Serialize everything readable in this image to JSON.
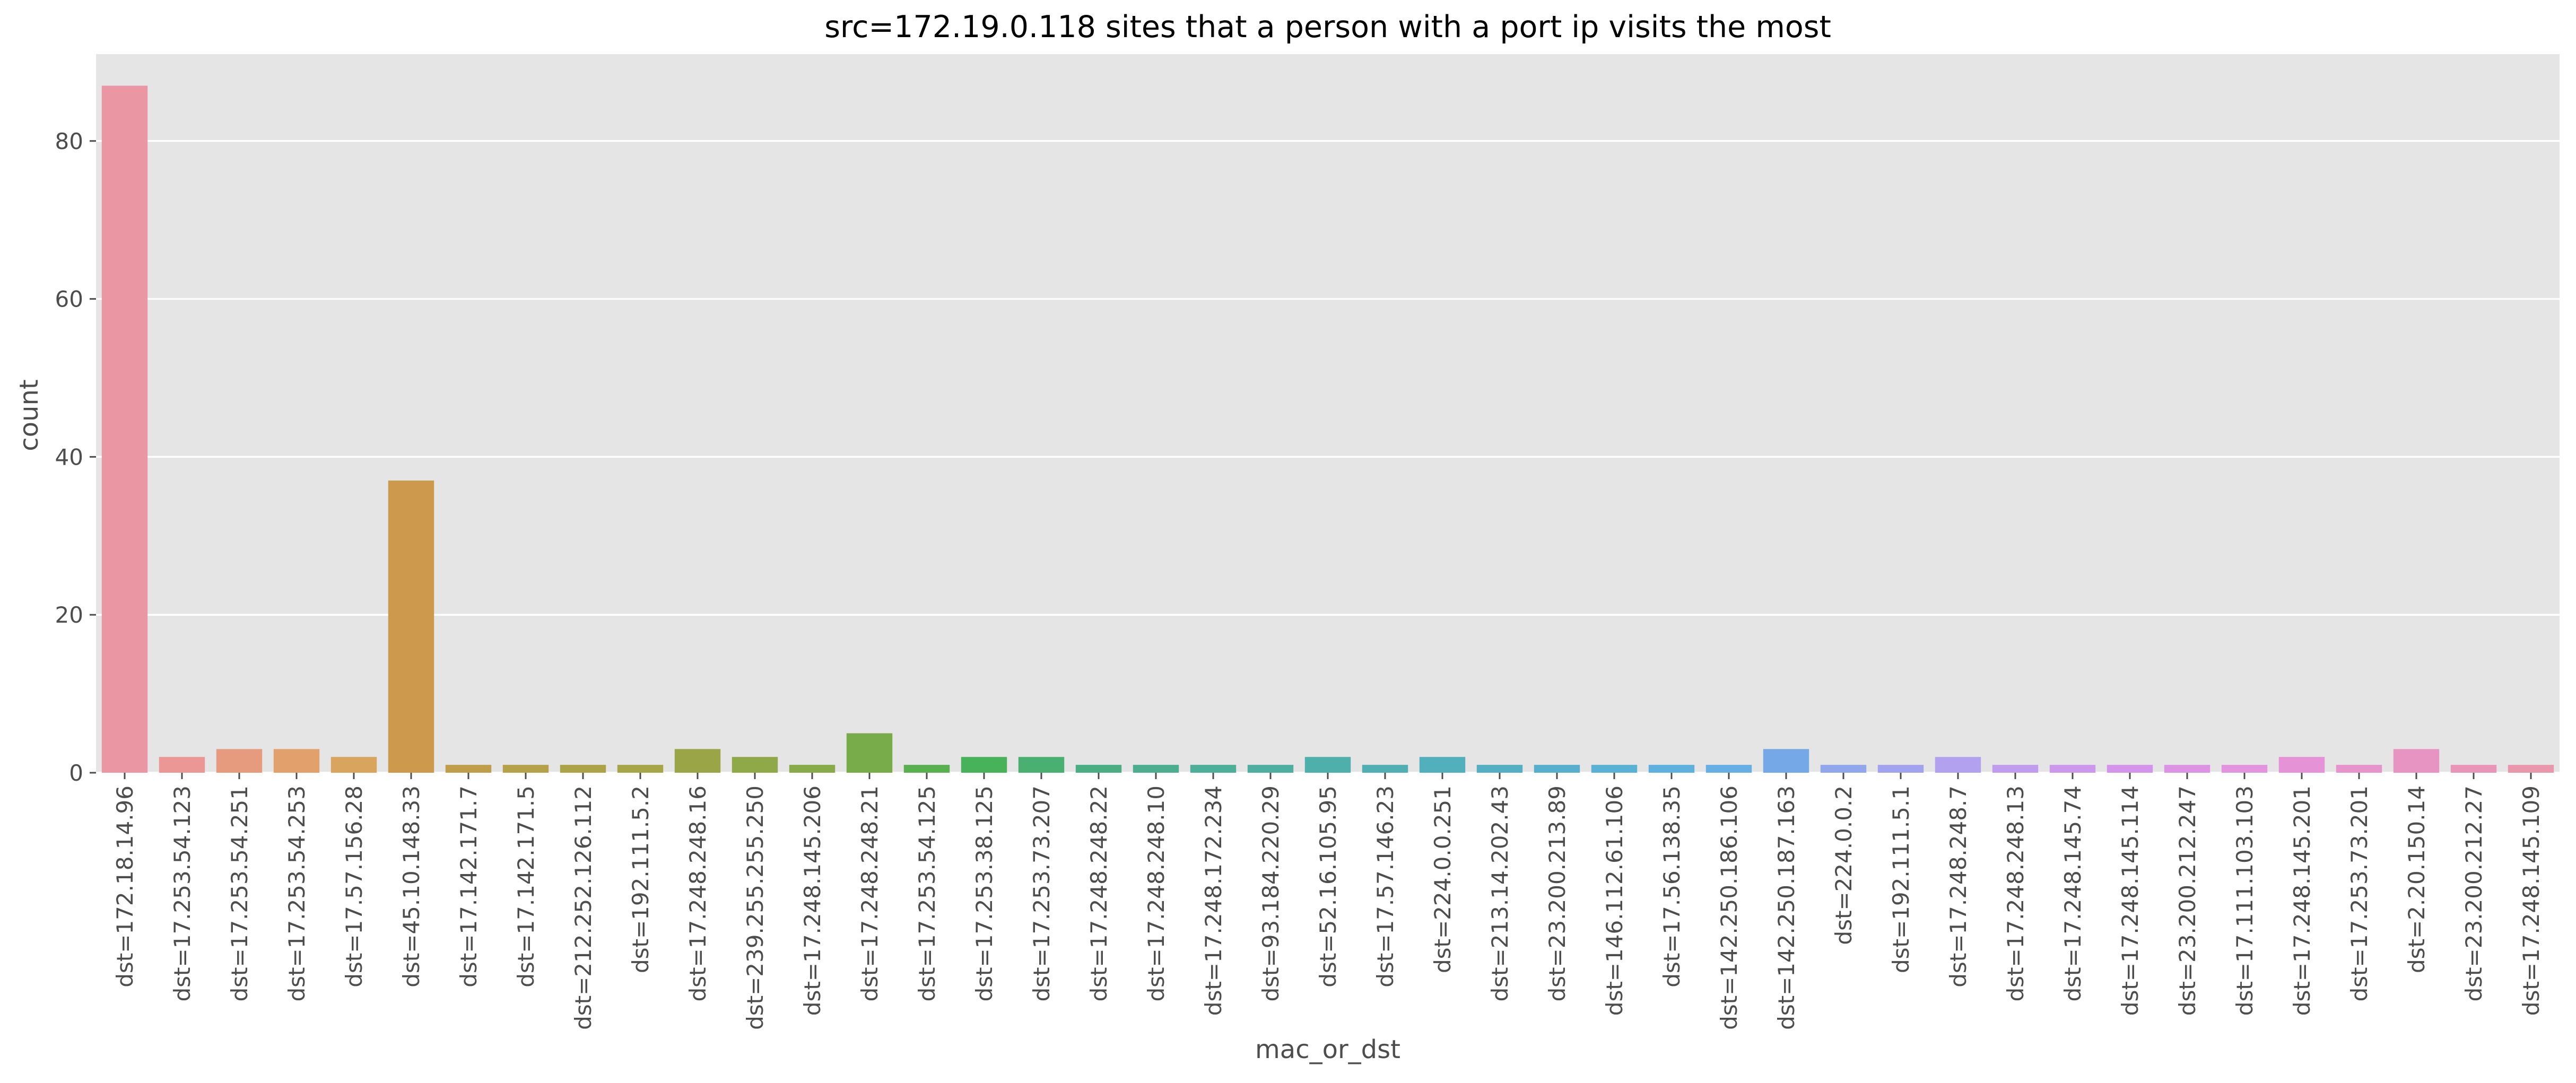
{
  "chart_data": {
    "type": "bar",
    "title": "src=172.19.0.118 sites that a person with a port ip visits the most",
    "xlabel": "mac_or_dst",
    "ylabel": "count",
    "ylim": [
      0,
      91
    ],
    "yticks": [
      0,
      20,
      40,
      60,
      80
    ],
    "grid": true,
    "categories": [
      "dst=172.18.14.96",
      "dst=17.253.54.123",
      "dst=17.253.54.251",
      "dst=17.253.54.253",
      "dst=17.57.156.28",
      "dst=45.10.148.33",
      "dst=17.142.171.7",
      "dst=17.142.171.5",
      "dst=212.252.126.112",
      "dst=192.111.5.2",
      "dst=17.248.248.16",
      "dst=239.255.255.250",
      "dst=17.248.145.206",
      "dst=17.248.248.21",
      "dst=17.253.54.125",
      "dst=17.253.38.125",
      "dst=17.253.73.207",
      "dst=17.248.248.22",
      "dst=17.248.248.10",
      "dst=17.248.172.234",
      "dst=93.184.220.29",
      "dst=52.16.105.95",
      "dst=17.57.146.23",
      "dst=224.0.0.251",
      "dst=213.14.202.43",
      "dst=23.200.213.89",
      "dst=146.112.61.106",
      "dst=17.56.138.35",
      "dst=142.250.186.106",
      "dst=142.250.187.163",
      "dst=224.0.0.2",
      "dst=192.111.5.1",
      "dst=17.248.248.7",
      "dst=17.248.248.13",
      "dst=17.248.145.74",
      "dst=17.248.145.114",
      "dst=23.200.212.247",
      "dst=17.111.103.103",
      "dst=17.248.145.201",
      "dst=17.253.73.201",
      "dst=2.20.150.14",
      "dst=23.200.212.27",
      "dst=17.248.145.109"
    ],
    "values": [
      87,
      2,
      3,
      3,
      2,
      37,
      1,
      1,
      1,
      1,
      3,
      2,
      1,
      5,
      1,
      2,
      2,
      1,
      1,
      1,
      1,
      2,
      1,
      2,
      1,
      1,
      1,
      1,
      1,
      3,
      1,
      1,
      2,
      1,
      1,
      1,
      1,
      1,
      2,
      1,
      3,
      1,
      1
    ],
    "colors": [
      "#ea96a3",
      "#eb9796",
      "#e69b7f",
      "#e2a06d",
      "#d9a45e",
      "#cd9a4d",
      "#bf9d49",
      "#b5a248",
      "#aca347",
      "#a6a647",
      "#9aa547",
      "#8fa948",
      "#86ab48",
      "#78ac4b",
      "#59b04f",
      "#47b25a",
      "#49b071",
      "#4bae82",
      "#4dad8f",
      "#4daf98",
      "#4eafa1",
      "#4fb0ab",
      "#50afb3",
      "#51b0bc",
      "#53b0c4",
      "#56b0cd",
      "#59b1d6",
      "#5eb0df",
      "#66afe4",
      "#75a8e6",
      "#91a7ec",
      "#a2a3ee",
      "#b1a1ef",
      "#c09cee",
      "#cb98ee",
      "#d594ec",
      "#dd93e4",
      "#e393df",
      "#e692d6",
      "#e793cc",
      "#e894c2",
      "#e995b7",
      "#e998ab"
    ],
    "background": "#e5e5e5",
    "grid_color": "#ffffff"
  }
}
